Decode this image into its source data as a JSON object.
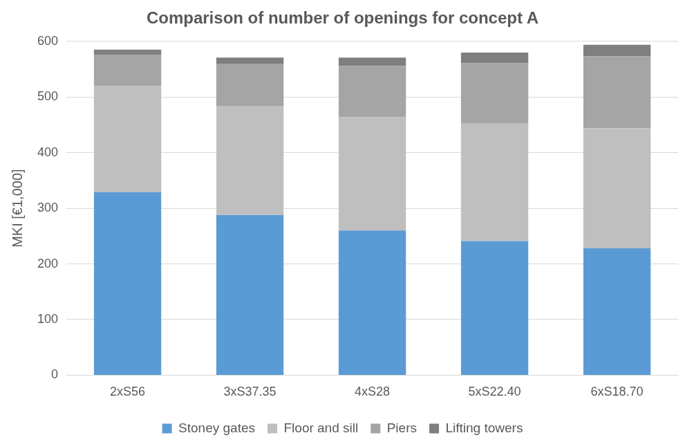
{
  "chart_data": {
    "type": "bar",
    "title": "Comparison of number of openings for concept A",
    "ylabel": "MKI [€1,000]",
    "categories": [
      "2xS56",
      "3xS37.35",
      "4xS28",
      "5xS22.40",
      "6xS18.70"
    ],
    "stacked": true,
    "ylim": [
      0,
      600
    ],
    "yticks": [
      0,
      100,
      200,
      300,
      400,
      500,
      600
    ],
    "grid": "y",
    "legend": "bottom",
    "series": [
      {
        "name": "Stoney gates",
        "color": "#5b9bd5",
        "values": [
          329,
          288,
          260,
          241,
          228
        ]
      },
      {
        "name": "Floor and sill",
        "color": "#bfbfbf",
        "values": [
          191,
          196,
          204,
          211,
          216
        ]
      },
      {
        "name": "Piers",
        "color": "#a5a5a5",
        "values": [
          56,
          75,
          92,
          109,
          129
        ]
      },
      {
        "name": "Lifting towers",
        "color": "#7f7f7f",
        "values": [
          9,
          12,
          15,
          19,
          21
        ]
      }
    ]
  }
}
